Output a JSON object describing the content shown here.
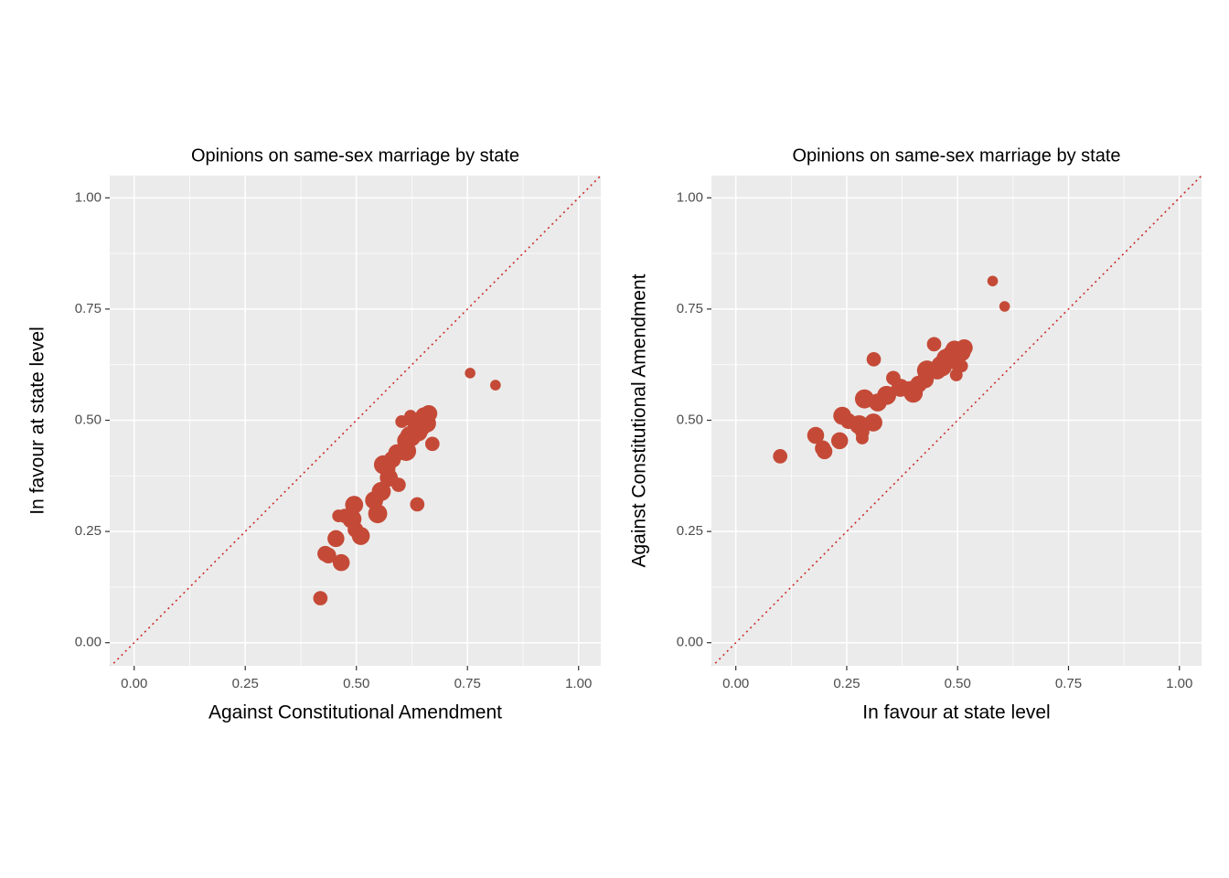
{
  "chart_data": [
    {
      "type": "scatter",
      "title": "Opinions on same-sex marriage by state",
      "xlabel": "Against Constitutional Amendment",
      "ylabel": "In favour at state level",
      "x": [
        0.419,
        0.466,
        0.437,
        0.43,
        0.454,
        0.51,
        0.498,
        0.49,
        0.474,
        0.46,
        0.548,
        0.637,
        0.495,
        0.54,
        0.556,
        0.595,
        0.573,
        0.569,
        0.561,
        0.581,
        0.591,
        0.612,
        0.671,
        0.612,
        0.622,
        0.639,
        0.647,
        0.659,
        0.624,
        0.653,
        0.622,
        0.663,
        0.602,
        0.813,
        0.756
      ],
      "values": [
        0.1,
        0.18,
        0.196,
        0.2,
        0.234,
        0.24,
        0.254,
        0.278,
        0.285,
        0.285,
        0.29,
        0.311,
        0.31,
        0.32,
        0.34,
        0.355,
        0.371,
        0.392,
        0.4,
        0.412,
        0.427,
        0.431,
        0.447,
        0.454,
        0.464,
        0.474,
        0.485,
        0.493,
        0.499,
        0.509,
        0.509,
        0.515,
        0.497,
        0.579,
        0.606
      ],
      "sizes": [
        3,
        5,
        4,
        4,
        5,
        6,
        4,
        7,
        3,
        2,
        7,
        3,
        6,
        6,
        7,
        3,
        6,
        5,
        7,
        5,
        5,
        8,
        3,
        6,
        9,
        7,
        6,
        6,
        2,
        6,
        2,
        5,
        2,
        1,
        1
      ],
      "color": "#c44a37",
      "reference_line": {
        "slope": 1,
        "intercept": 0,
        "color": "#cc2a2a",
        "style": "dotted"
      },
      "xlim": [
        -0.055,
        1.05
      ],
      "ylim": [
        -0.052,
        1.05
      ],
      "xticks": [
        {
          "value": 0,
          "label": "0.00"
        },
        0.25,
        {
          "value": 0.5,
          "label": "0.50"
        },
        0.75,
        {
          "value": 1,
          "label": "1.00"
        }
      ],
      "yticks": [
        {
          "value": 0,
          "label": "0.00"
        },
        0.25,
        {
          "value": 0.5,
          "label": "0.50"
        },
        0.75,
        {
          "value": 1,
          "label": "1.00"
        }
      ],
      "grid": true,
      "minor_grid": true
    },
    {
      "type": "scatter",
      "title": "Opinions on same-sex marriage by state",
      "xlabel": "In favour at state level",
      "ylabel": "Against Constitutional Amendment",
      "x": [
        0.1,
        0.18,
        0.196,
        0.2,
        0.234,
        0.24,
        0.254,
        0.278,
        0.285,
        0.285,
        0.29,
        0.311,
        0.31,
        0.32,
        0.34,
        0.355,
        0.371,
        0.392,
        0.4,
        0.412,
        0.427,
        0.431,
        0.447,
        0.454,
        0.464,
        0.474,
        0.485,
        0.493,
        0.499,
        0.509,
        0.509,
        0.515,
        0.497,
        0.579,
        0.606
      ],
      "values": [
        0.419,
        0.466,
        0.437,
        0.43,
        0.454,
        0.51,
        0.498,
        0.49,
        0.474,
        0.46,
        0.548,
        0.637,
        0.495,
        0.54,
        0.556,
        0.595,
        0.573,
        0.569,
        0.561,
        0.581,
        0.591,
        0.612,
        0.671,
        0.612,
        0.622,
        0.639,
        0.647,
        0.659,
        0.624,
        0.653,
        0.622,
        0.663,
        0.602,
        0.813,
        0.756
      ],
      "sizes": [
        3,
        5,
        4,
        4,
        5,
        6,
        4,
        7,
        3,
        2,
        7,
        3,
        6,
        6,
        7,
        3,
        6,
        5,
        7,
        5,
        5,
        8,
        3,
        6,
        9,
        7,
        6,
        6,
        2,
        6,
        2,
        5,
        2,
        1,
        1
      ],
      "color": "#c44a37",
      "reference_line": {
        "slope": 1,
        "intercept": 0,
        "color": "#cc2a2a",
        "style": "dotted"
      },
      "xlim": [
        -0.055,
        1.05
      ],
      "ylim": [
        -0.052,
        1.05
      ],
      "xticks": [
        {
          "value": 0,
          "label": "0.00"
        },
        0.25,
        {
          "value": 0.5,
          "label": "0.50"
        },
        0.75,
        {
          "value": 1,
          "label": "1.00"
        }
      ],
      "yticks": [
        {
          "value": 0,
          "label": "0.00"
        },
        0.25,
        {
          "value": 0.5,
          "label": "0.50"
        },
        0.75,
        {
          "value": 1,
          "label": "1.00"
        }
      ],
      "grid": true,
      "minor_grid": true
    }
  ]
}
